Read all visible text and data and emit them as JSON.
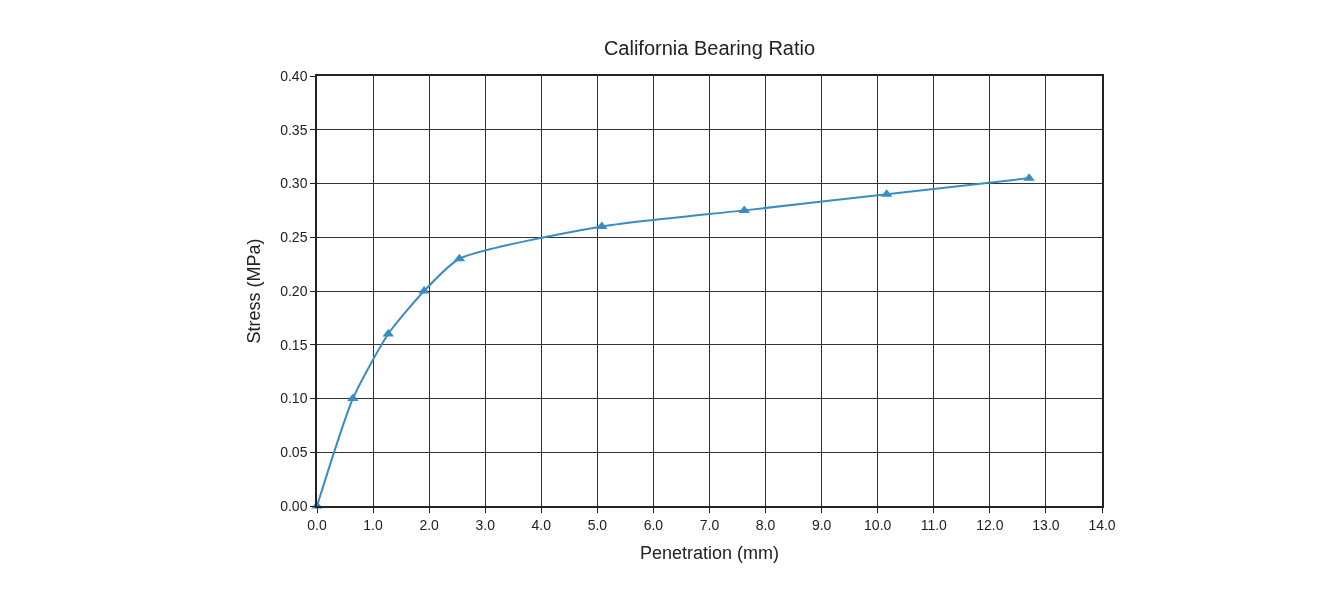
{
  "chart_data": {
    "type": "line",
    "title": "California Bearing Ratio",
    "xlabel": "Penetration (mm)",
    "ylabel": "Stress (MPa)",
    "x": [
      0,
      0.64,
      1.27,
      1.91,
      2.54,
      5.08,
      7.62,
      10.16,
      12.7
    ],
    "series": [
      {
        "color": "#3a8cc4",
        "values": [
          0,
          0.1,
          0.16,
          0.2,
          0.23,
          0.26,
          0.275,
          0.29,
          0.305
        ]
      }
    ],
    "xlim": [
      0,
      14
    ],
    "xticks": [
      {
        "value": 0,
        "label": "0.0"
      },
      {
        "value": 1,
        "label": "1.0"
      },
      {
        "value": 2,
        "label": "2.0"
      },
      {
        "value": 3,
        "label": "3.0"
      },
      {
        "value": 4,
        "label": "4.0"
      },
      {
        "value": 5,
        "label": "5.0"
      },
      {
        "value": 6,
        "label": "6.0"
      },
      {
        "value": 7,
        "label": "7.0"
      },
      {
        "value": 8,
        "label": "8.0"
      },
      {
        "value": 9,
        "label": "9.0"
      },
      {
        "value": 10,
        "label": "10.0"
      },
      {
        "value": 11,
        "label": "11.0"
      },
      {
        "value": 12,
        "label": "12.0"
      },
      {
        "value": 13,
        "label": "13.0"
      },
      {
        "value": 14,
        "label": "14.0"
      }
    ],
    "ylim": [
      0,
      0.4
    ],
    "yticks": [
      {
        "value": 0,
        "label": "0.00"
      },
      {
        "value": 0.05,
        "label": "0.05"
      },
      {
        "value": 0.1,
        "label": "0.10"
      },
      {
        "value": 0.15,
        "label": "0.15"
      },
      {
        "value": 0.2,
        "label": "0.20"
      },
      {
        "value": 0.25,
        "label": "0.25"
      },
      {
        "value": 0.3,
        "label": "0.30"
      },
      {
        "value": 0.35,
        "label": "0.35"
      },
      {
        "value": 0.4,
        "label": "0.40"
      }
    ],
    "grid": true,
    "legend": false,
    "marker": "triangle",
    "line_style": "solid"
  }
}
